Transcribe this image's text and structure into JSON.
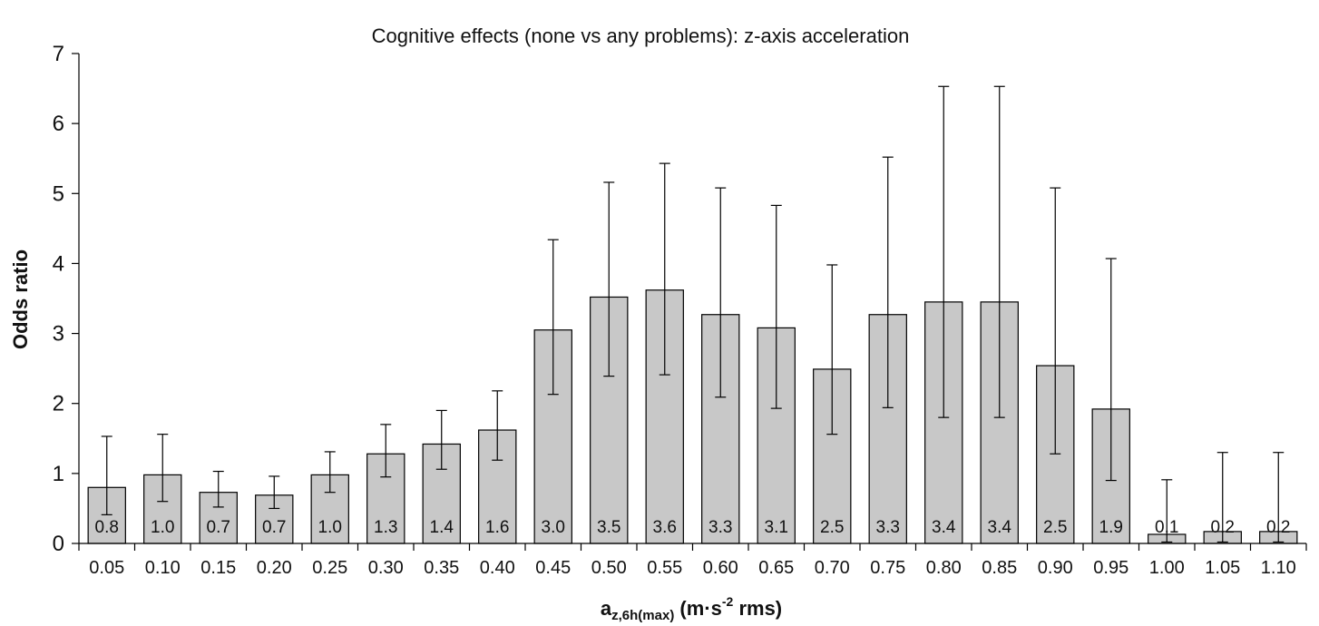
{
  "chart_data": {
    "type": "bar",
    "title": "Cognitive effects (none vs any problems): z-axis acceleration",
    "ylabel": "Odds ratio",
    "xlabel": {
      "main": "a",
      "subscript": "z,6h(max)",
      "unit_start": " (m·s",
      "unit_superscript": "-2",
      "unit_end": " rms)"
    },
    "ylim": [
      0,
      7
    ],
    "yticks": [
      "0",
      "1",
      "2",
      "3",
      "4",
      "5",
      "6",
      "7"
    ],
    "grid": false,
    "legend": "none",
    "bar_color": "#c8c8c8",
    "categories": [
      "0.05",
      "0.10",
      "0.15",
      "0.20",
      "0.25",
      "0.30",
      "0.35",
      "0.40",
      "0.45",
      "0.50",
      "0.55",
      "0.60",
      "0.65",
      "0.70",
      "0.75",
      "0.80",
      "0.85",
      "0.90",
      "0.95",
      "1.00",
      "1.05",
      "1.10"
    ],
    "values": [
      0.8,
      0.98,
      0.73,
      0.69,
      0.98,
      1.28,
      1.42,
      1.62,
      3.05,
      3.52,
      3.62,
      3.27,
      3.08,
      2.49,
      3.27,
      3.45,
      3.45,
      2.54,
      1.92,
      0.13,
      0.17,
      0.17
    ],
    "data_labels": [
      "0.8",
      "1.0",
      "0.7",
      "0.7",
      "1.0",
      "1.3",
      "1.4",
      "1.6",
      "3.0",
      "3.5",
      "3.6",
      "3.3",
      "3.1",
      "2.5",
      "3.3",
      "3.4",
      "3.4",
      "2.5",
      "1.9",
      "0.1",
      "0.2",
      "0.2"
    ],
    "ci_lower": [
      0.41,
      0.6,
      0.52,
      0.5,
      0.73,
      0.95,
      1.06,
      1.19,
      2.13,
      2.39,
      2.41,
      2.09,
      1.93,
      1.56,
      1.94,
      1.8,
      1.8,
      1.28,
      0.9,
      0.02,
      0.02,
      0.02
    ],
    "ci_upper": [
      1.53,
      1.56,
      1.03,
      0.96,
      1.31,
      1.7,
      1.9,
      2.18,
      4.34,
      5.16,
      5.43,
      5.08,
      4.83,
      3.98,
      5.52,
      6.53,
      6.53,
      5.08,
      4.07,
      0.91,
      1.3,
      1.3
    ]
  }
}
